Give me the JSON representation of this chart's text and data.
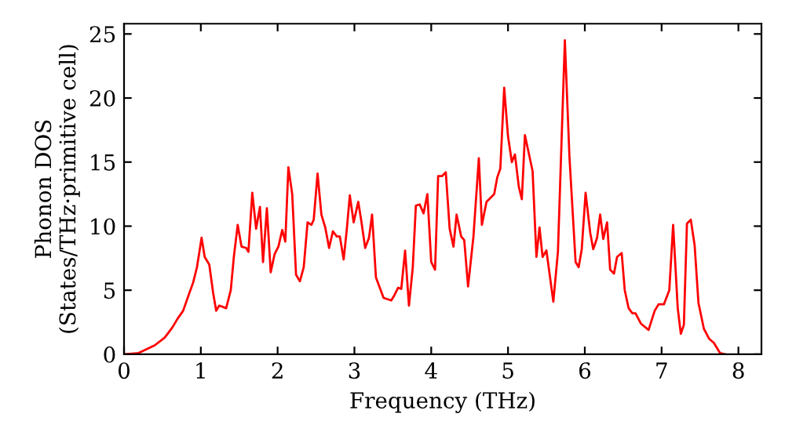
{
  "chart_data": {
    "type": "line",
    "xlabel": "Frequency (THz)",
    "ylabel": "Phonon DOS\n(States/THz·primitive cell)",
    "xlim": [
      0,
      8.3
    ],
    "ylim": [
      0,
      25.8
    ],
    "xticks": [
      0,
      1,
      2,
      3,
      4,
      5,
      6,
      7,
      8
    ],
    "yticks": [
      0,
      5,
      10,
      15,
      20,
      25
    ],
    "grid": false,
    "marker": "none",
    "line_style": "solid",
    "series": [
      {
        "color": "#ff0000",
        "x": [
          0.02,
          0.19,
          0.4,
          0.53,
          0.63,
          0.7,
          0.77,
          0.84,
          0.9,
          0.95,
          1.01,
          1.05,
          1.11,
          1.16,
          1.2,
          1.24,
          1.33,
          1.39,
          1.43,
          1.48,
          1.53,
          1.59,
          1.62,
          1.67,
          1.72,
          1.77,
          1.81,
          1.86,
          1.91,
          1.96,
          2.01,
          2.06,
          2.1,
          2.14,
          2.19,
          2.24,
          2.29,
          2.34,
          2.39,
          2.44,
          2.47,
          2.52,
          2.57,
          2.62,
          2.67,
          2.72,
          2.77,
          2.81,
          2.86,
          2.9,
          2.94,
          2.99,
          3.05,
          3.09,
          3.14,
          3.19,
          3.23,
          3.28,
          3.33,
          3.38,
          3.48,
          3.52,
          3.57,
          3.61,
          3.66,
          3.71,
          3.76,
          3.8,
          3.85,
          3.9,
          3.95,
          4.0,
          4.05,
          4.09,
          4.14,
          4.19,
          4.24,
          4.29,
          4.33,
          4.39,
          4.43,
          4.48,
          4.55,
          4.62,
          4.66,
          4.72,
          4.77,
          4.82,
          4.86,
          4.9,
          4.95,
          5.0,
          5.05,
          5.09,
          5.14,
          5.18,
          5.22,
          5.27,
          5.32,
          5.37,
          5.41,
          5.45,
          5.5,
          5.59,
          5.65,
          5.74,
          5.8,
          5.88,
          5.92,
          5.96,
          6.01,
          6.07,
          6.11,
          6.16,
          6.2,
          6.24,
          6.29,
          6.33,
          6.38,
          6.42,
          6.48,
          6.52,
          6.57,
          6.62,
          6.66,
          6.73,
          6.83,
          6.91,
          6.96,
          7.03,
          7.1,
          7.15,
          7.21,
          7.25,
          7.29,
          7.33,
          7.38,
          7.43,
          7.48,
          7.55,
          7.62,
          7.68,
          7.76,
          7.83
        ],
        "values": [
          0,
          0.1,
          0.7,
          1.3,
          2.1,
          2.8,
          3.4,
          4.6,
          5.6,
          6.8,
          9.1,
          7.6,
          7.0,
          4.8,
          3.4,
          3.8,
          3.6,
          5.0,
          7.6,
          10.1,
          8.4,
          8.3,
          8.0,
          12.6,
          9.8,
          11.5,
          7.2,
          11.4,
          6.4,
          7.8,
          8.4,
          9.7,
          8.8,
          14.6,
          12.5,
          6.2,
          5.7,
          6.8,
          10.3,
          10.1,
          10.5,
          14.1,
          10.9,
          9.9,
          8.3,
          9.6,
          9.2,
          9.2,
          7.4,
          9.7,
          12.4,
          10.3,
          11.9,
          10.4,
          8.3,
          9.1,
          10.9,
          6.0,
          5.2,
          4.4,
          4.2,
          4.6,
          5.2,
          5.1,
          8.1,
          3.8,
          6.8,
          11.6,
          11.7,
          11.0,
          12.5,
          7.2,
          6.6,
          13.9,
          13.9,
          14.2,
          9.8,
          8.4,
          10.9,
          9.2,
          8.9,
          5.3,
          9.2,
          15.3,
          10.1,
          11.9,
          12.2,
          12.5,
          13.8,
          14.5,
          20.8,
          17.0,
          15.0,
          15.6,
          13.1,
          12.1,
          17.1,
          15.7,
          14.3,
          7.6,
          9.9,
          7.6,
          8.1,
          4.1,
          8.0,
          24.5,
          15.4,
          7.2,
          6.8,
          8.2,
          12.6,
          9.5,
          8.2,
          9.1,
          10.9,
          9.0,
          10.3,
          6.6,
          6.3,
          7.6,
          7.9,
          5.0,
          3.6,
          3.2,
          3.2,
          2.4,
          1.9,
          3.4,
          3.9,
          3.9,
          5.0,
          10.1,
          3.6,
          1.6,
          2.3,
          10.2,
          10.5,
          8.5,
          4.0,
          2.0,
          1.2,
          0.9,
          0.1,
          0
        ]
      }
    ]
  }
}
